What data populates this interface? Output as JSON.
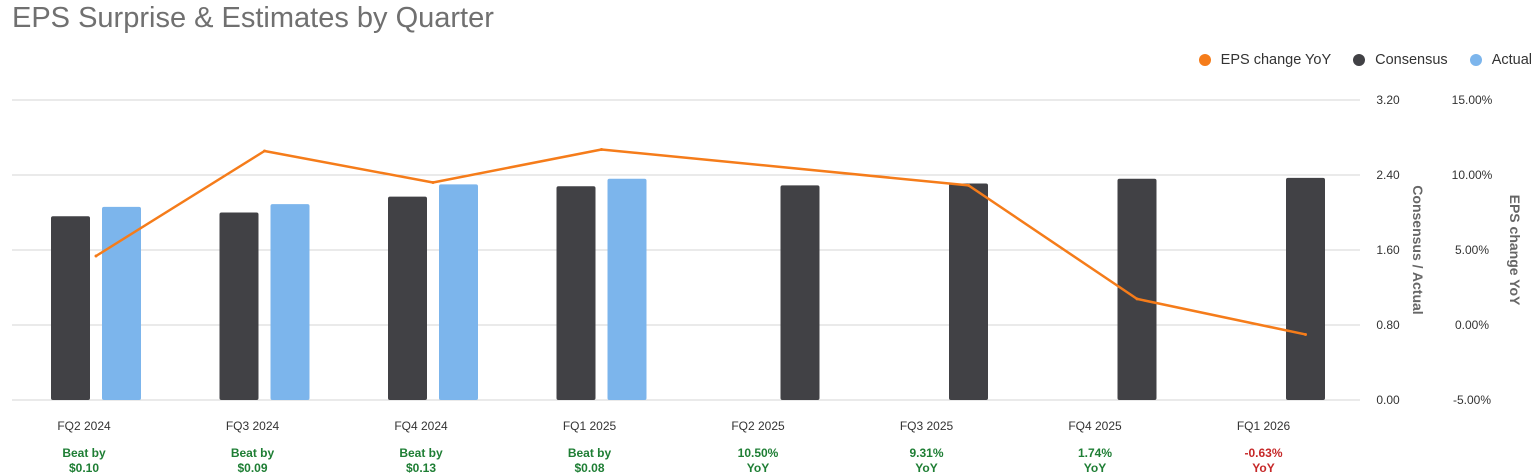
{
  "chart_data": {
    "type": "bar",
    "title": "EPS Surprise & Estimates by Quarter",
    "categories": [
      "FQ2 2024",
      "FQ3 2024",
      "FQ4 2024",
      "FQ1 2025",
      "FQ2 2025",
      "FQ3 2025",
      "FQ4 2025",
      "FQ1 2026"
    ],
    "series": [
      {
        "name": "Consensus",
        "kind": "bar",
        "axis": "left",
        "color": "#414145",
        "values": [
          1.96,
          2.0,
          2.17,
          2.28,
          2.29,
          2.31,
          2.36,
          2.37
        ]
      },
      {
        "name": "Actual",
        "kind": "bar",
        "axis": "left",
        "color": "#7cb5ec",
        "values": [
          2.06,
          2.09,
          2.3,
          2.36,
          null,
          null,
          null,
          null
        ]
      },
      {
        "name": "EPS change YoY",
        "kind": "line",
        "axis": "right",
        "color": "#f57c1a",
        "values": [
          4.6,
          11.6,
          9.5,
          11.7,
          null,
          9.31,
          1.74,
          -0.63
        ]
      }
    ],
    "left_axis": {
      "label": "Consensus / Actual",
      "ylim": [
        0,
        3.2
      ],
      "ticks": [
        "0.00",
        "0.80",
        "1.60",
        "2.40",
        "3.20"
      ]
    },
    "right_axis": {
      "label": "EPS change YoY",
      "ylim": [
        -5,
        15
      ],
      "ticks": [
        "-5.00%",
        "0.00%",
        "5.00%",
        "10.00%",
        "15.00%"
      ]
    },
    "grid": true,
    "legend_position": "top-right",
    "annotations": [
      {
        "line1": "Beat by",
        "line2": "$0.10",
        "status": "positive"
      },
      {
        "line1": "Beat by",
        "line2": "$0.09",
        "status": "positive"
      },
      {
        "line1": "Beat by",
        "line2": "$0.13",
        "status": "positive"
      },
      {
        "line1": "Beat by",
        "line2": "$0.08",
        "status": "positive"
      },
      {
        "line1": "10.50%",
        "line2": "YoY",
        "status": "positive"
      },
      {
        "line1": "9.31%",
        "line2": "YoY",
        "status": "positive"
      },
      {
        "line1": "1.74%",
        "line2": "YoY",
        "status": "positive"
      },
      {
        "line1": "-0.63%",
        "line2": "YoY",
        "status": "negative"
      }
    ]
  },
  "colors": {
    "positive": "#1e7e34",
    "negative": "#c62828",
    "grid": "#d6d6d6",
    "tick": "#333333",
    "axis_label": "#666666"
  },
  "legend": [
    {
      "label": "EPS change YoY",
      "color": "#f57c1a"
    },
    {
      "label": "Consensus",
      "color": "#414145"
    },
    {
      "label": "Actual",
      "color": "#7cb5ec"
    }
  ]
}
